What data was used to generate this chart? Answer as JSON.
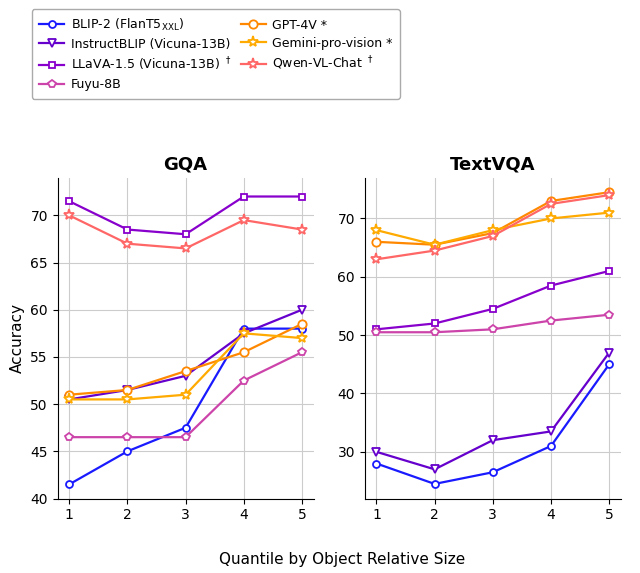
{
  "x": [
    1,
    2,
    3,
    4,
    5
  ],
  "gqa": {
    "blip2": [
      41.5,
      45.0,
      47.5,
      58.0,
      58.0
    ],
    "instructblip": [
      50.5,
      51.5,
      53.0,
      57.5,
      60.0
    ],
    "llava": [
      71.5,
      68.5,
      68.0,
      72.0,
      72.0
    ],
    "fuyu": [
      46.5,
      46.5,
      46.5,
      52.5,
      55.5
    ],
    "gpt4v": [
      51.0,
      51.5,
      53.5,
      55.5,
      58.5
    ],
    "gemini": [
      50.5,
      50.5,
      51.0,
      57.5,
      57.0
    ],
    "qwen": [
      70.0,
      67.0,
      66.5,
      69.5,
      68.5
    ]
  },
  "textvqa": {
    "blip2": [
      28.0,
      24.5,
      26.5,
      31.0,
      45.0
    ],
    "instructblip": [
      30.0,
      27.0,
      32.0,
      33.5,
      47.0
    ],
    "llava": [
      51.0,
      52.0,
      54.5,
      58.5,
      61.0
    ],
    "fuyu": [
      50.5,
      50.5,
      51.0,
      52.5,
      53.5
    ],
    "gpt4v": [
      66.0,
      65.5,
      67.5,
      73.0,
      74.5
    ],
    "gemini": [
      68.0,
      65.5,
      68.0,
      70.0,
      71.0
    ],
    "qwen": [
      63.0,
      64.5,
      67.0,
      72.5,
      74.0
    ]
  },
  "colors": {
    "blip2": "#1a1aff",
    "instructblip": "#6600cc",
    "llava": "#8800cc",
    "fuyu": "#cc44aa",
    "gpt4v": "#ff8800",
    "gemini": "#ffaa00",
    "qwen": "#ff6666"
  },
  "markers": {
    "blip2": "o",
    "instructblip": "v",
    "llava": "s",
    "fuyu": "p",
    "gpt4v": "o",
    "gemini": "*",
    "qwen": "*"
  },
  "labels": {
    "blip2": "BLIP-2 (FlanT5$_\\mathrm{XXL}$)",
    "instructblip": "InstructBLIP (Vicuna-13B)",
    "llava": "LLaVA-1.5 (Vicuna-13B) $^\\dagger$",
    "fuyu": "Fuyu-8B",
    "gpt4v": "GPT-4V *",
    "gemini": "Gemini-pro-vision *",
    "qwen": "Qwen-VL-Chat $^\\dagger$"
  },
  "xlabel": "Quantile by Object Relative Size",
  "ylabel": "Accuracy",
  "title_gqa": "GQA",
  "title_textvqa": "TextVQA",
  "gqa_ylim": [
    40,
    74
  ],
  "gqa_yticks": [
    40,
    45,
    50,
    55,
    60,
    65,
    70
  ],
  "textvqa_ylim": [
    22,
    77
  ],
  "textvqa_yticks": [
    30,
    40,
    50,
    60,
    70
  ]
}
